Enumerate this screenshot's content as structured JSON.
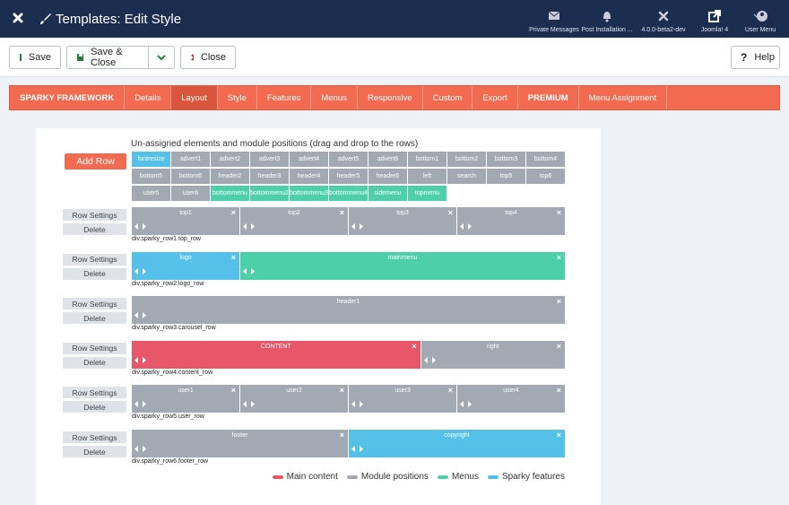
{
  "header": {
    "title": "Templates: Edit Style",
    "items": [
      "Private Messages",
      "Post Installation ...",
      "4.0.0-beta2-dev",
      "Joomla! 4",
      "User Menu"
    ]
  },
  "toolbar": {
    "save": "Save",
    "save_close": "Save & Close",
    "close": "Close",
    "help": "Help"
  },
  "tabs": {
    "items": [
      "SPARKY FRAMEWORK",
      "Details",
      "Layout",
      "Style",
      "Features",
      "Menus",
      "Responsive",
      "Custom",
      "Export",
      "PREMIUM",
      "Menu Assignment"
    ],
    "active": 2
  },
  "layout": {
    "add_row": "Add Row",
    "unassigned_title": "Un-assigned elements and module positions (drag and drop to the rows)",
    "unassigned": [
      {
        "label": "fontresize",
        "color": "#55c0e8"
      },
      {
        "label": "advert1",
        "color": "#a3a9b3"
      },
      {
        "label": "advert2",
        "color": "#a3a9b3"
      },
      {
        "label": "advert3",
        "color": "#a3a9b3"
      },
      {
        "label": "advert4",
        "color": "#a3a9b3"
      },
      {
        "label": "advert5",
        "color": "#a3a9b3"
      },
      {
        "label": "advert6",
        "color": "#a3a9b3"
      },
      {
        "label": "bottom1",
        "color": "#a3a9b3"
      },
      {
        "label": "bottom2",
        "color": "#a3a9b3"
      },
      {
        "label": "bottom3",
        "color": "#a3a9b3"
      },
      {
        "label": "bottom4",
        "color": "#a3a9b3"
      },
      {
        "label": "bottom5",
        "color": "#a3a9b3"
      },
      {
        "label": "bottom6",
        "color": "#a3a9b3"
      },
      {
        "label": "header2",
        "color": "#a3a9b3"
      },
      {
        "label": "header3",
        "color": "#a3a9b3"
      },
      {
        "label": "header4",
        "color": "#a3a9b3"
      },
      {
        "label": "header5",
        "color": "#a3a9b3"
      },
      {
        "label": "header6",
        "color": "#a3a9b3"
      },
      {
        "label": "left",
        "color": "#a3a9b3"
      },
      {
        "label": "search",
        "color": "#a3a9b3"
      },
      {
        "label": "top5",
        "color": "#a3a9b3"
      },
      {
        "label": "top6",
        "color": "#a3a9b3"
      },
      {
        "label": "user5",
        "color": "#a3a9b3"
      },
      {
        "label": "user6",
        "color": "#a3a9b3"
      },
      {
        "label": "bottommenu",
        "color": "#4dcfa8"
      },
      {
        "label": "bottommenu2",
        "color": "#4dcfa8"
      },
      {
        "label": "bottommenu3",
        "color": "#4dcfa8"
      },
      {
        "label": "bottommenu4",
        "color": "#4dcfa8"
      },
      {
        "label": "sidemenu",
        "color": "#4dcfa8"
      },
      {
        "label": "topmenu",
        "color": "#4dcfa8"
      }
    ],
    "rows": [
      {
        "settings": "Row Settings",
        "delete": "Delete",
        "name": "div.sparky_row1.top_row",
        "cells": [
          {
            "label": "top1",
            "color": "#a3a9b3"
          },
          {
            "label": "top2",
            "color": "#a3a9b3"
          },
          {
            "label": "top3",
            "color": "#a3a9b3"
          },
          {
            "label": "top4",
            "color": "#a3a9b3"
          }
        ]
      },
      {
        "settings": "Row Settings",
        "delete": "Delete",
        "name": "div.sparky_row2.logo_row",
        "cells": [
          {
            "label": "logo",
            "color": "#55c0e8"
          },
          {
            "label": "mainmenu",
            "color": "#4dcfa8"
          }
        ]
      },
      {
        "settings": "Row Settings",
        "delete": "Delete",
        "name": "div.sparky_row3.carousel_row",
        "cells": [
          {
            "label": "header1",
            "color": "#a3a9b3"
          }
        ]
      },
      {
        "settings": "Row Settings",
        "delete": "Delete",
        "name": "div.sparky_row4.content_row",
        "cells": [
          {
            "label": "CONTENT",
            "color": "#e8566a"
          },
          {
            "label": "right",
            "color": "#a3a9b3"
          }
        ]
      },
      {
        "settings": "Row Settings",
        "delete": "Delete",
        "name": "div.sparky_row5.user_row",
        "cells": [
          {
            "label": "user1",
            "color": "#a3a9b3"
          },
          {
            "label": "user2",
            "color": "#a3a9b3"
          },
          {
            "label": "user3",
            "color": "#a3a9b3"
          },
          {
            "label": "user4",
            "color": "#a3a9b3"
          }
        ]
      },
      {
        "settings": "Row Settings",
        "delete": "Delete",
        "name": "div.sparky_row6.footer_row",
        "cells": [
          {
            "label": "footer",
            "color": "#a3a9b3"
          },
          {
            "label": "copyright",
            "color": "#55c0e8"
          }
        ]
      }
    ],
    "legend": [
      {
        "name": "Main content",
        "color": "#e8566a"
      },
      {
        "name": "Module positions",
        "color": "#a3a9b3"
      },
      {
        "name": "Menus",
        "color": "#4dcfa8"
      },
      {
        "name": "Sparky features",
        "color": "#55c0e8"
      }
    ]
  }
}
